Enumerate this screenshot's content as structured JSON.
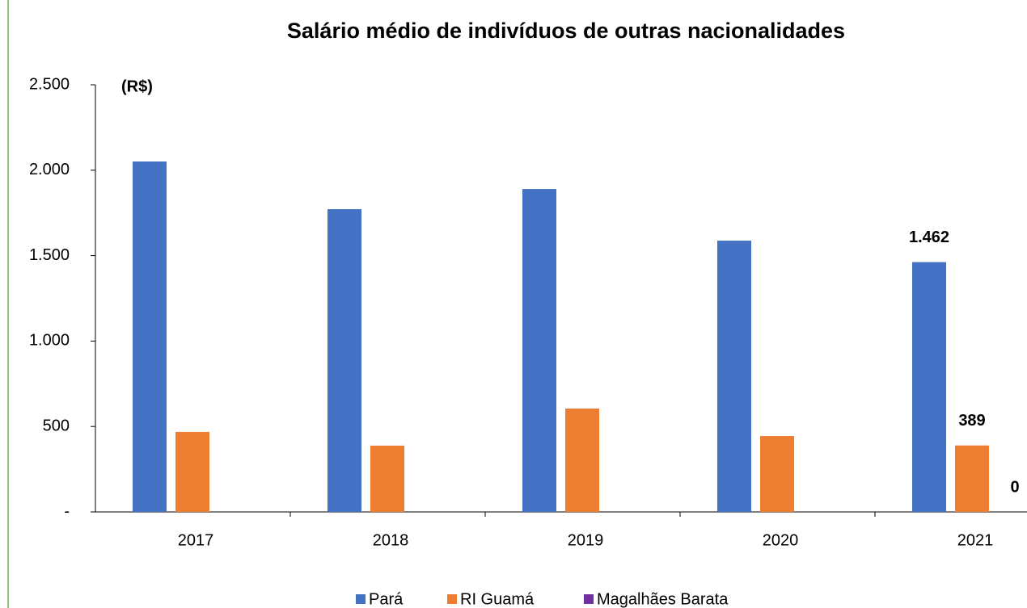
{
  "chart_data": {
    "type": "bar",
    "title": "Salário médio de indivíduos de outras nacionalidades",
    "y_label": "(R$)",
    "categories": [
      "2017",
      "2018",
      "2019",
      "2020",
      "2021"
    ],
    "series": [
      {
        "name": "Pará",
        "color": "#4472c4",
        "values": [
          2051,
          1772,
          1890,
          1588,
          1462
        ],
        "value_labels": [
          null,
          null,
          null,
          null,
          "1.462"
        ]
      },
      {
        "name": "RI Guamá",
        "color": "#ed7d31",
        "values": [
          468,
          388,
          605,
          444,
          389
        ],
        "value_labels": [
          null,
          null,
          null,
          null,
          "389"
        ]
      },
      {
        "name": "Magalhães Barata",
        "color": "#7030a0",
        "values": [
          0,
          0,
          0,
          0,
          0
        ],
        "value_labels": [
          null,
          null,
          null,
          null,
          "0"
        ]
      }
    ],
    "ylim": [
      0,
      2500
    ],
    "yticks": [
      {
        "value": 0,
        "label": "-"
      },
      500,
      {
        "value": 1000,
        "label": "1.000"
      },
      {
        "value": 1500,
        "label": "1.500"
      },
      {
        "value": 2000,
        "label": "2.000"
      },
      {
        "value": 2500,
        "label": "2.500"
      }
    ],
    "legend": "bottom"
  }
}
